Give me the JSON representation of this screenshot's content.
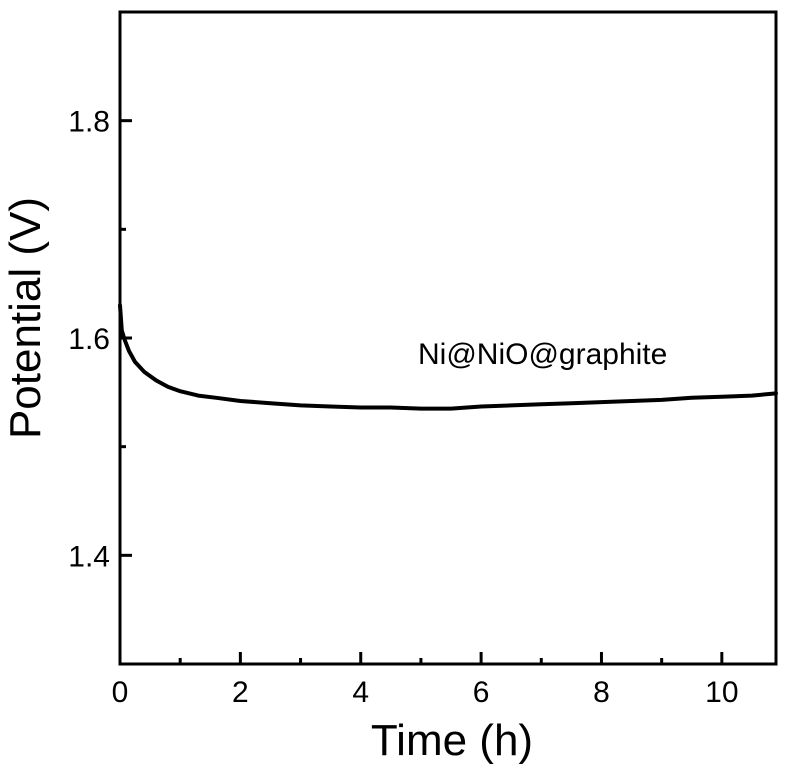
{
  "chart_data": {
    "type": "line",
    "title": "",
    "xlabel": "Time (h)",
    "ylabel": "Potential (V)",
    "xlim": [
      0,
      10.9
    ],
    "ylim": [
      1.3,
      1.9
    ],
    "x_ticks": [
      0,
      2,
      4,
      6,
      8,
      10
    ],
    "x_tick_labels": [
      "0",
      "2",
      "4",
      "6",
      "8",
      "10"
    ],
    "x_minor_ticks": [
      1,
      3,
      5,
      7,
      9
    ],
    "y_ticks": [
      1.4,
      1.6,
      1.8
    ],
    "y_tick_labels": [
      "1.4",
      "1.6",
      "1.8"
    ],
    "y_minor_ticks": [
      1.5,
      1.7
    ],
    "grid": false,
    "legend": "none",
    "annotations": [
      {
        "text": "Ni@NiO@graphite",
        "x": 5.0,
        "y": 1.57
      }
    ],
    "series": [
      {
        "color": "#000000",
        "x": [
          0,
          0.03,
          0.08,
          0.15,
          0.25,
          0.4,
          0.6,
          0.8,
          1.0,
          1.3,
          1.6,
          2.0,
          2.5,
          3.0,
          3.5,
          4.0,
          4.5,
          5.0,
          5.5,
          6.0,
          6.5,
          7.0,
          7.5,
          8.0,
          8.5,
          9.0,
          9.5,
          10.0,
          10.5,
          10.9
        ],
        "y": [
          1.63,
          1.607,
          1.598,
          1.588,
          1.578,
          1.569,
          1.561,
          1.555,
          1.551,
          1.547,
          1.545,
          1.542,
          1.54,
          1.538,
          1.537,
          1.536,
          1.536,
          1.535,
          1.535,
          1.537,
          1.538,
          1.539,
          1.54,
          1.541,
          1.542,
          1.543,
          1.545,
          1.546,
          1.547,
          1.549
        ]
      }
    ]
  }
}
